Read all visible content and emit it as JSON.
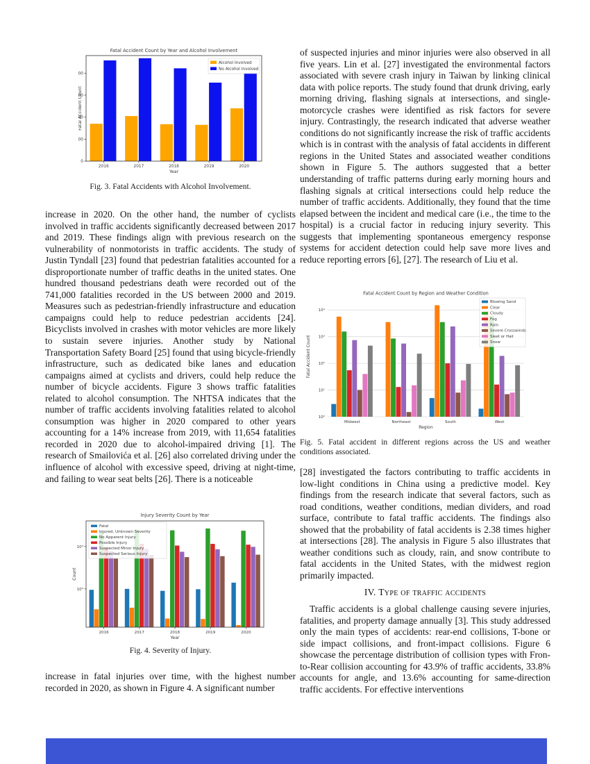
{
  "left_column": {
    "fig3_caption": "Fig. 3. Fatal Accidents with Alcohol Involvement.",
    "para1": "increase in 2020. On the other hand, the number of cyclists involved in traffic accidents significantly decreased between 2017 and 2019. These findings align with previous research on the vulnerability of nonmotorists in traffic accidents. The study of Justin Tyndall [23] found that pedestrian fatalities accounted for a disproportionate number of traffic deaths in the united states. One hundred thousand pedestrians death were recorded out of the 741,000 fatalities recorded in the US between 2000 and 2019. Measures such as pedestrian-friendly infrastructure and education campaigns could help to reduce pedestrian accidents [24]. Bicyclists involved in crashes with motor vehicles are more likely to sustain severe injuries. Another study by National Transportation Safety Board [25] found that using bicycle-friendly infrastructure, such as dedicated bike lanes and education campaigns aimed at cyclists and drivers, could help reduce the number of bicycle accidents. Figure 3 shows traffic fatalities related to alcohol consumption. The NHTSA indicates that the number of traffic accidents involving fatalities related to alcohol consumption was higher in 2020 compared to other years accounting for a 14% increase from 2019, with 11,654 fatalities recorded in 2020 due to alcohol-impaired driving [1]. The research of Smailovića et al. [26] also correlated driving under the influence of alcohol with excessive speed, driving at night-time, and failing to wear seat belts [26]. There is a noticeable",
    "fig4_caption": "Fig. 4. Severity of Injury.",
    "para2": "increase in fatal injuries over time, with the highest number recorded in 2020, as shown in Figure 4. A significant number"
  },
  "right_column": {
    "para1": "of suspected injuries and minor injuries were also observed in all five years. Lin et al. [27] investigated the environmental factors associated with severe crash injury in Taiwan by linking clinical data with police reports. The study found that drunk driving, early morning driving, flashing signals at intersections, and single-motorcycle crashes were identified as risk factors for severe injury. Contrastingly, the research indicated that adverse weather conditions do not significantly increase the risk of traffic accidents which is in contrast with the analysis of fatal accidents in different regions in the United States and associated weather conditions shown in Figure 5. The authors suggested that a better understanding of traffic patterns during early morning hours and flashing signals at critical intersections could help reduce the number of traffic accidents. Additionally, they found that the time elapsed between the incident and medical care (i.e., the time to the hospital) is a crucial factor in reducing injury severity. This suggests that implementing spontaneous emergency response systems for accident detection could help save more lives and reduce reporting errors [6], [27]. The research of Liu et al.",
    "fig5_caption": "Fig. 5. Fatal accident in different regions across the US and weather conditions associated.",
    "para2": "[28] investigated the factors contributing to traffic accidents in low-light conditions in China using a predictive model. Key findings from the research indicate that several factors, such as road conditions, weather conditions, median dividers, and road surface, contribute to fatal traffic accidents. The findings also showed that the probability of fatal accidents is 2.38 times higher at intersections [28]. The analysis in Figure 5 also illustrates that weather conditions such as cloudy, rain, and snow contribute to fatal accidents in the United States, with the midwest region primarily impacted.",
    "section_heading": "IV. Type of traffic accidents",
    "para3": "Traffic accidents is a global challenge causing severe injuries, fatalities, and property damage annually [3]. This study addressed only the main types of accidents: rear-end collisions, T-bone or side impact collisions, and front-impact collisions. Figure 6 showcase the percentage distribution of collision types with Fron-to-Rear collision accounting for 43.9% of traffic accidents, 33.8% accounts for angle, and 13.6% accounting for same-direction traffic accidents. For effective interventions"
  },
  "bottom_bar": {
    "color": "#3c55d4"
  },
  "chart_data": [
    {
      "type": "bar",
      "title": "Fatal Accident Count by Year and Alcohol Involvement",
      "xlabel": "Year",
      "ylabel": "Fatal Accident Count",
      "categories": [
        "2016",
        "2017",
        "2018",
        "2019",
        "2020"
      ],
      "series": [
        {
          "name": "Alcohol Involved",
          "color": "#ffa500",
          "values": [
            170,
            205,
            168,
            165,
            240
          ]
        },
        {
          "name": "No Alcohol Involved",
          "color": "#0d13ee",
          "values": [
            458,
            468,
            422,
            357,
            400
          ]
        }
      ],
      "yscale": "linear",
      "ylim": [
        0,
        480
      ],
      "yticks": [
        0,
        100,
        200,
        300,
        400
      ],
      "legend_position": "top-right",
      "grid": false
    },
    {
      "type": "bar",
      "title": "Injury Severity Count by Year",
      "xlabel": "Year",
      "ylabel": "Count",
      "categories": [
        "2016",
        "2017",
        "2018",
        "2019",
        "2020"
      ],
      "series": [
        {
          "name": "Fatal",
          "color": "#1f77b4",
          "values": [
            950,
            1000,
            900,
            980,
            1400
          ]
        },
        {
          "name": "Injured, Unknown Severity",
          "color": "#ff7f0e",
          "values": [
            330,
            360,
            200,
            195,
            140
          ]
        },
        {
          "name": "No Apparent Injury",
          "color": "#2ca02c",
          "values": [
            22000,
            25000,
            24000,
            26500,
            23500
          ]
        },
        {
          "name": "Possible Injury",
          "color": "#d62728",
          "values": [
            9500,
            11500,
            10500,
            11500,
            11000
          ]
        },
        {
          "name": "Suspected Minor Injury",
          "color": "#9467bd",
          "values": [
            7800,
            8800,
            7500,
            8600,
            9800
          ]
        },
        {
          "name": "Suspected Serious Injury",
          "color": "#8c564b",
          "values": [
            5200,
            6300,
            5600,
            5900,
            6400
          ]
        }
      ],
      "yscale": "log",
      "ylim": [
        125,
        40000
      ],
      "yticks": [
        1000,
        10000
      ],
      "legend_position": "top-left",
      "grid": false
    },
    {
      "type": "bar",
      "title": "Fatal Accident Count by Region and Weather Condition",
      "xlabel": "Region",
      "ylabel": "Fatal Accident Count",
      "categories": [
        "Midwest",
        "Northeast",
        "South",
        "West"
      ],
      "series": [
        {
          "name": "Blowing Sand",
          "color": "#1f77b4",
          "values": [
            3,
            0,
            5,
            2
          ]
        },
        {
          "name": "Clear",
          "color": "#ff7f0e",
          "values": [
            5600,
            3500,
            15000,
            9000
          ]
        },
        {
          "name": "Cloudy",
          "color": "#2ca02c",
          "values": [
            1550,
            850,
            3500,
            6000
          ]
        },
        {
          "name": "Fog",
          "color": "#d62728",
          "values": [
            55,
            13,
            100,
            16
          ]
        },
        {
          "name": "Rain",
          "color": "#9467bd",
          "values": [
            740,
            550,
            2400,
            190
          ]
        },
        {
          "name": "Severe Crosswinds",
          "color": "#8c564b",
          "values": [
            10,
            1.5,
            8,
            7
          ]
        },
        {
          "name": "Sleet or Hail",
          "color": "#e377c2",
          "values": [
            40,
            15,
            23,
            8
          ]
        },
        {
          "name": "Snow",
          "color": "#7f7f7f",
          "values": [
            460,
            230,
            95,
            85
          ]
        }
      ],
      "yscale": "log",
      "ylim": [
        1,
        31623
      ],
      "yticks": [
        1,
        10,
        100,
        1000,
        10000
      ],
      "legend_position": "top-right",
      "grid": true
    }
  ]
}
